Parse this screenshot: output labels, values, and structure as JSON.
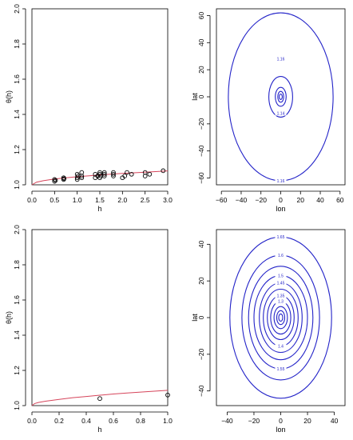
{
  "colors": {
    "curve": "#d6455b",
    "contour": "#2323c8",
    "points": "#000000"
  },
  "chart_data": [
    {
      "type": "scatter",
      "title": "",
      "xlabel": "h",
      "ylabel": "θ(h)",
      "xlim": [
        0.0,
        3.0
      ],
      "ylim": [
        1.0,
        2.0
      ],
      "xticks": [
        "0.0",
        "0.5",
        "1.0",
        "1.5",
        "2.0",
        "2.5",
        "3.0"
      ],
      "yticks": [
        "1.0",
        "1.2",
        "1.4",
        "1.6",
        "1.8",
        "2.0"
      ],
      "x_tick_values": [
        0.0,
        0.5,
        1.0,
        1.5,
        2.0,
        2.5,
        3.0
      ],
      "y_tick_values": [
        1.0,
        1.2,
        1.4,
        1.6,
        1.8,
        2.0
      ],
      "points": [
        [
          0.5,
          1.02
        ],
        [
          0.5,
          1.03
        ],
        [
          0.52,
          1.025
        ],
        [
          0.7,
          1.03
        ],
        [
          0.7,
          1.04
        ],
        [
          0.71,
          1.035
        ],
        [
          1.0,
          1.03
        ],
        [
          1.0,
          1.04
        ],
        [
          1.0,
          1.06
        ],
        [
          1.02,
          1.05
        ],
        [
          1.1,
          1.04
        ],
        [
          1.1,
          1.05
        ],
        [
          1.1,
          1.07
        ],
        [
          1.4,
          1.04
        ],
        [
          1.4,
          1.06
        ],
        [
          1.45,
          1.05
        ],
        [
          1.5,
          1.04
        ],
        [
          1.5,
          1.06
        ],
        [
          1.5,
          1.07
        ],
        [
          1.52,
          1.05
        ],
        [
          1.6,
          1.05
        ],
        [
          1.6,
          1.07
        ],
        [
          1.6,
          1.06
        ],
        [
          1.8,
          1.05
        ],
        [
          1.8,
          1.07
        ],
        [
          1.8,
          1.06
        ],
        [
          2.0,
          1.04
        ],
        [
          2.05,
          1.05
        ],
        [
          2.1,
          1.07
        ],
        [
          2.2,
          1.06
        ],
        [
          2.5,
          1.05
        ],
        [
          2.5,
          1.07
        ],
        [
          2.6,
          1.06
        ],
        [
          2.9,
          1.08
        ]
      ],
      "fitted_curve": {
        "x": [
          0.0,
          0.1,
          0.25,
          0.5,
          0.75,
          1.0,
          1.5,
          2.0,
          2.5,
          3.0
        ],
        "y": [
          1.0,
          1.015,
          1.023,
          1.033,
          1.04,
          1.046,
          1.056,
          1.065,
          1.072,
          1.079
        ]
      }
    },
    {
      "type": "contour",
      "title": "",
      "xlabel": "lon",
      "ylabel": "lat",
      "xlim": [
        -65,
        65
      ],
      "ylim": [
        -65,
        65
      ],
      "xticks": [
        "−60",
        "−40",
        "−20",
        "0",
        "20",
        "40",
        "60"
      ],
      "yticks": [
        "−60",
        "−40",
        "−20",
        "0",
        "20",
        "40",
        "60"
      ],
      "x_tick_values": [
        -60,
        -40,
        -20,
        0,
        20,
        40,
        60
      ],
      "y_tick_values": [
        -60,
        -40,
        -20,
        0,
        20,
        40,
        60
      ],
      "contours": [
        {
          "level": "1.16",
          "rx": 53,
          "ry": 62
        },
        {
          "level": "1.14",
          "rx": 12,
          "ry": 15
        },
        {
          "level": "",
          "rx": 5.5,
          "ry": 7
        },
        {
          "level": "",
          "rx": 3,
          "ry": 4
        },
        {
          "level": "",
          "rx": 1.5,
          "ry": 2
        }
      ],
      "contour_labels": [
        {
          "text": "1.16",
          "x": 0,
          "y": -62
        },
        {
          "text": "1.16",
          "x": 0,
          "y": 28
        },
        {
          "text": "1.14",
          "x": 0,
          "y": -12
        }
      ]
    },
    {
      "type": "scatter",
      "title": "",
      "xlabel": "h",
      "ylabel": "θ(h)",
      "xlim": [
        0.0,
        1.0
      ],
      "ylim": [
        1.0,
        2.0
      ],
      "xticks": [
        "0.0",
        "0.2",
        "0.4",
        "0.6",
        "0.8",
        "1.0"
      ],
      "yticks": [
        "1.0",
        "1.2",
        "1.4",
        "1.6",
        "1.8",
        "2.0"
      ],
      "x_tick_values": [
        0.0,
        0.2,
        0.4,
        0.6,
        0.8,
        1.0
      ],
      "y_tick_values": [
        1.0,
        1.2,
        1.4,
        1.6,
        1.8,
        2.0
      ],
      "points": [
        [
          0.5,
          1.04
        ],
        [
          1.0,
          1.06
        ]
      ],
      "fitted_curve": {
        "x": [
          0.0,
          0.02,
          0.05,
          0.1,
          0.2,
          0.3,
          0.4,
          0.5,
          0.6,
          0.7,
          0.8,
          0.9,
          1.0
        ],
        "y": [
          1.0,
          1.012,
          1.018,
          1.025,
          1.035,
          1.045,
          1.052,
          1.059,
          1.066,
          1.072,
          1.077,
          1.082,
          1.087
        ]
      }
    },
    {
      "type": "contour",
      "title": "",
      "xlabel": "lon",
      "ylabel": "lat",
      "xlim": [
        -48,
        48
      ],
      "ylim": [
        -48,
        48
      ],
      "xticks": [
        "−40",
        "−20",
        "0",
        "20",
        "40"
      ],
      "yticks": [
        "−40",
        "−20",
        "0",
        "20",
        "40"
      ],
      "x_tick_values": [
        -40,
        -20,
        0,
        20,
        40
      ],
      "y_tick_values": [
        -40,
        -20,
        0,
        20,
        40
      ],
      "contours": [
        {
          "level": "1.65",
          "rx": 38,
          "ry": 44
        },
        {
          "level": "1.6",
          "rx": 29,
          "ry": 34
        },
        {
          "level": "1.55",
          "rx": 24,
          "ry": 28
        },
        {
          "level": "1.5",
          "rx": 20,
          "ry": 23
        },
        {
          "level": "1.45",
          "rx": 16,
          "ry": 19
        },
        {
          "level": "1.4",
          "rx": 13,
          "ry": 15.5
        },
        {
          "level": "1.35",
          "rx": 10,
          "ry": 12
        },
        {
          "level": "1.3",
          "rx": 7.5,
          "ry": 9
        },
        {
          "level": "",
          "rx": 5,
          "ry": 6
        },
        {
          "level": "",
          "rx": 3,
          "ry": 3.8
        },
        {
          "level": "",
          "rx": 1.5,
          "ry": 2
        }
      ],
      "contour_labels": [
        {
          "text": "1.65",
          "x": 0,
          "y": 44
        },
        {
          "text": "1.6",
          "x": 0,
          "y": 34
        },
        {
          "text": "1.55",
          "x": 0,
          "y": -28
        },
        {
          "text": "1.5",
          "x": 0,
          "y": 23
        },
        {
          "text": "1.45",
          "x": 0,
          "y": 19
        },
        {
          "text": "1.4",
          "x": 0,
          "y": -15.5
        },
        {
          "text": "1.35",
          "x": 0,
          "y": 12
        },
        {
          "text": "1.3",
          "x": 0,
          "y": 9
        }
      ]
    }
  ]
}
